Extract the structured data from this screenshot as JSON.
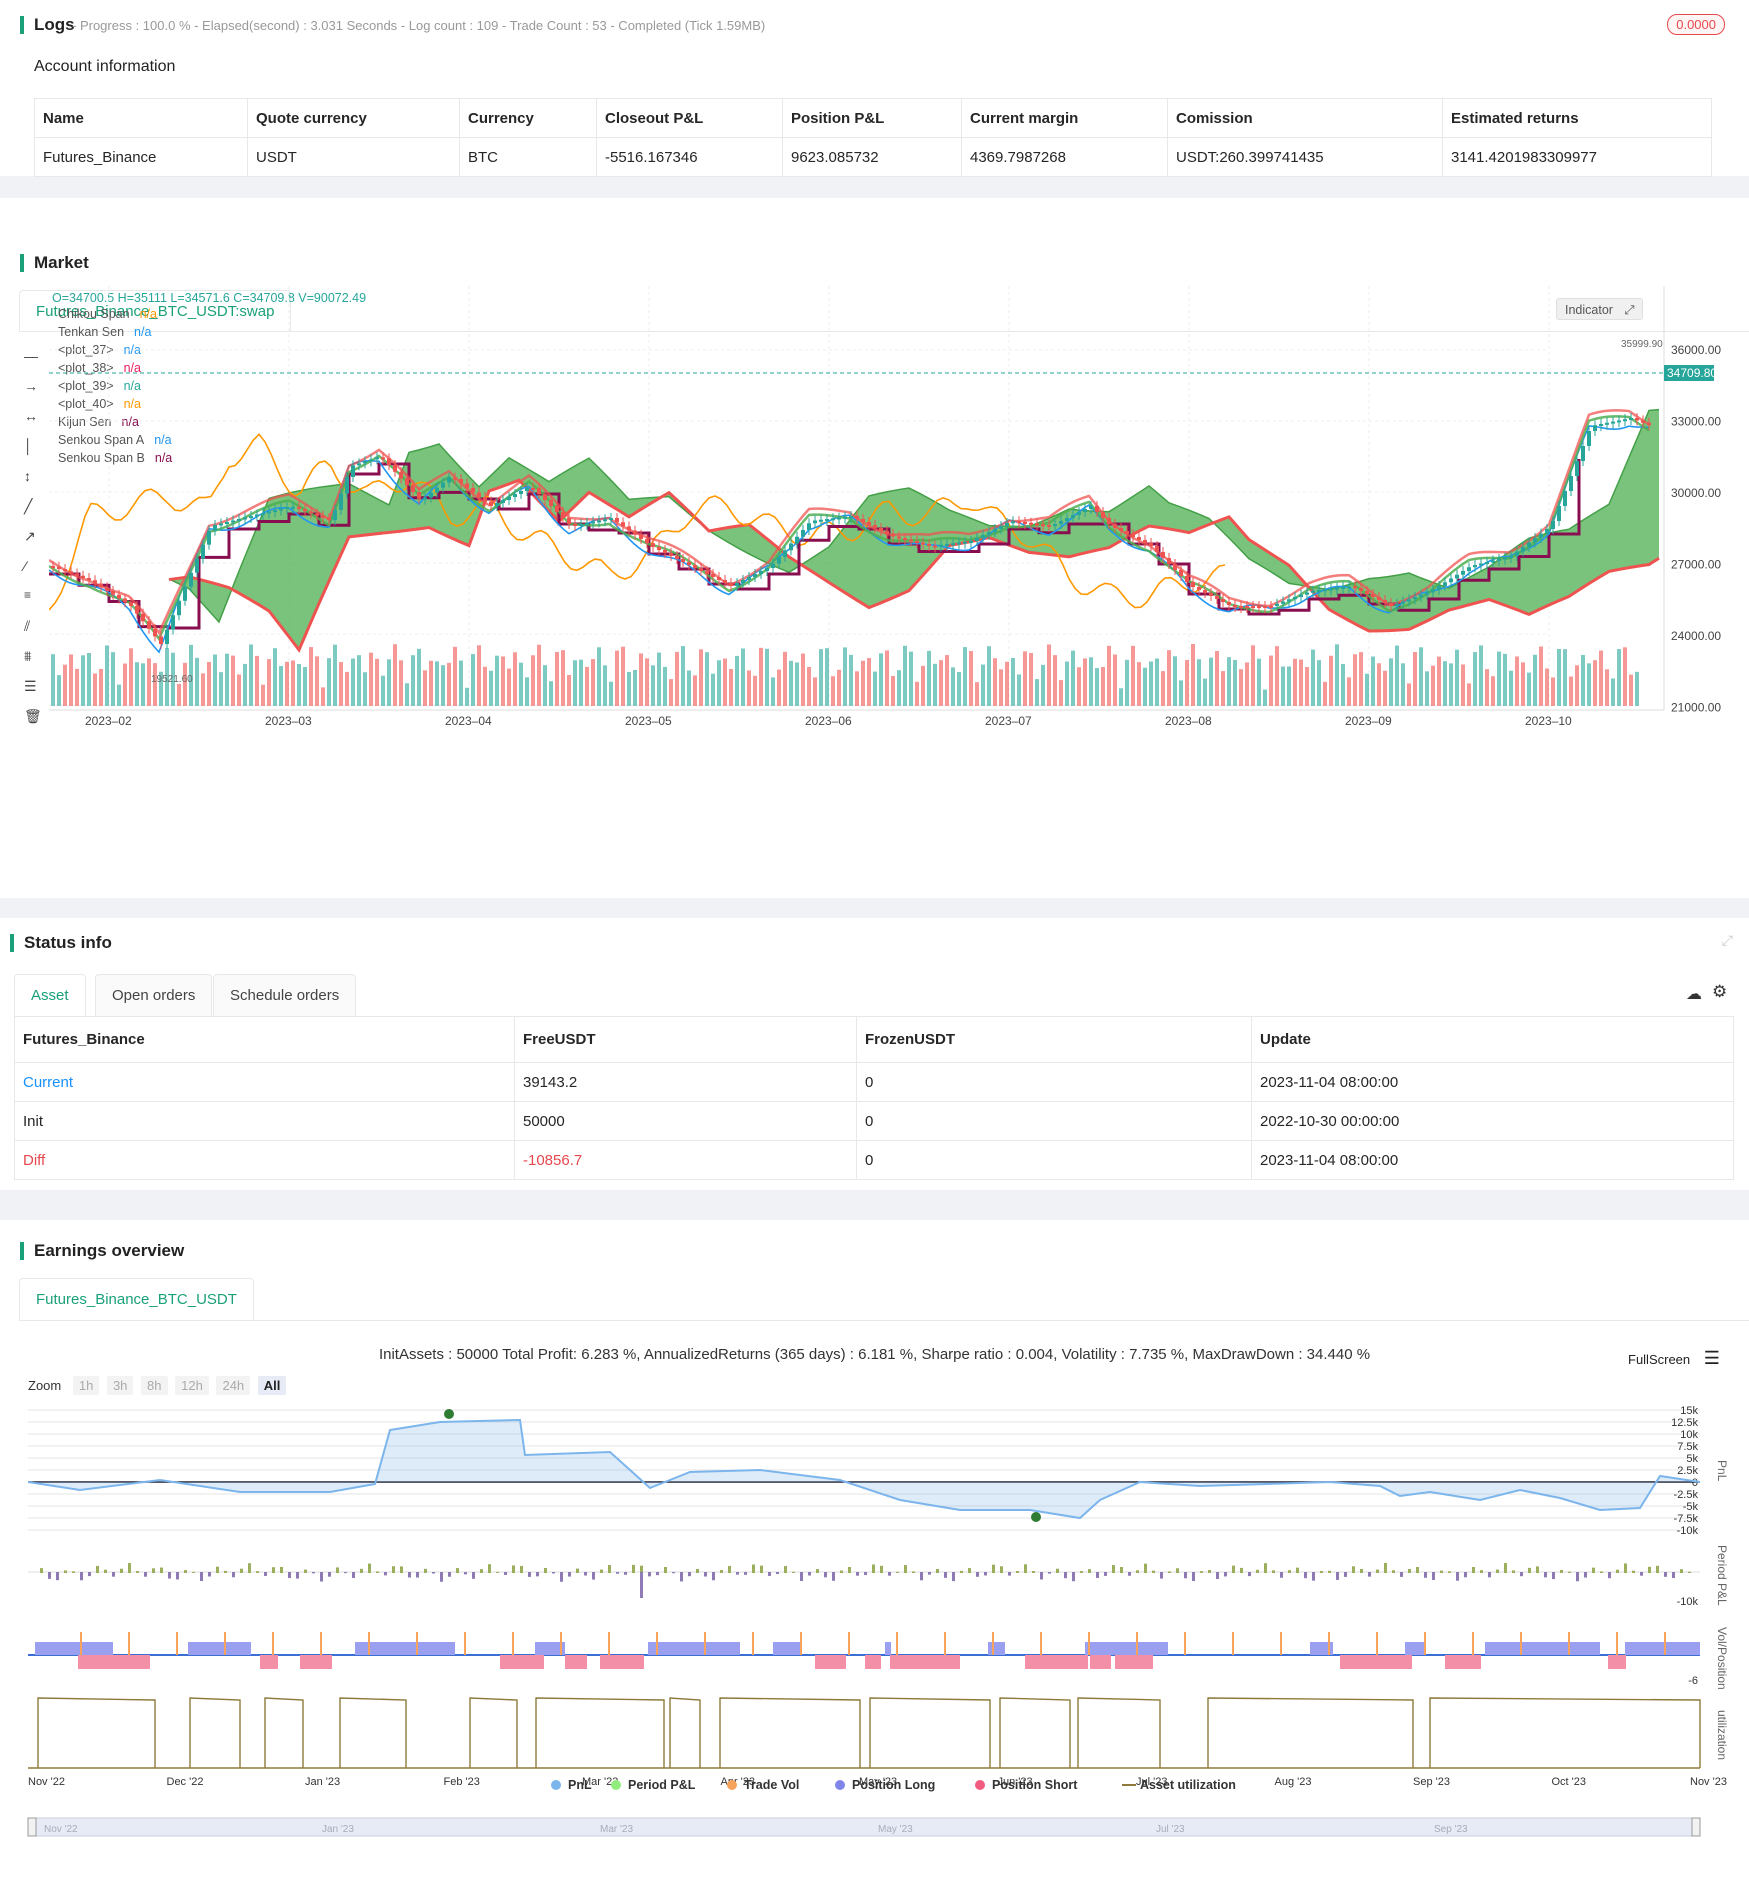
{
  "logs": {
    "title": "Logs",
    "status": "- Progress : 100.0 % - Elapsed(second) : 3.031 Seconds - Log count : 109 - Trade Count : 53 - Completed (Tick 1.59MB)",
    "badge": "0.0000"
  },
  "account": {
    "title": "Account information",
    "headers": [
      "Name",
      "Quote currency",
      "Currency",
      "Closeout P&L",
      "Position P&L",
      "Current margin",
      "Comission",
      "Estimated returns"
    ],
    "row": [
      "Futures_Binance",
      "USDT",
      "BTC",
      "-5516.167346",
      "9623.085732",
      "4369.7987268",
      "USDT:260.399741435",
      "3141.4201983309977"
    ]
  },
  "market": {
    "title": "Market",
    "tab": "Futures_Binance_BTC_USDT:swap",
    "ohlc": "O=34700.5 H=35111 L=34571.6 C=34709.8 V=90072.49",
    "indicator_btn": "Indicator",
    "legend": [
      {
        "name": "Chikou Span",
        "val": "n/a",
        "color": "#ff9800"
      },
      {
        "name": "Tenkan Sen",
        "val": "n/a",
        "color": "#2196f3"
      },
      {
        "name": "<plot_37>",
        "val": "n/a",
        "color": "#2196f3"
      },
      {
        "name": "<plot_38>",
        "val": "n/a",
        "color": "#e91e63"
      },
      {
        "name": "<plot_39>",
        "val": "n/a",
        "color": "#26a69a"
      },
      {
        "name": "<plot_40>",
        "val": "n/a",
        "color": "#ff9800"
      },
      {
        "name": "Kijun Sen",
        "val": "n/a",
        "color": "#880e4f"
      },
      {
        "name": "Senkou Span A",
        "val": "n/a",
        "color": "#2196f3"
      },
      {
        "name": "Senkou Span B",
        "val": "n/a",
        "color": "#880e4f"
      }
    ],
    "y_ticks": [
      "36000.00",
      "33000.00",
      "30000.00",
      "27000.00",
      "24000.00",
      "21000.00"
    ],
    "x_ticks": [
      "2023–02",
      "2023–03",
      "2023–04",
      "2023–05",
      "2023–06",
      "2023–07",
      "2023–08",
      "2023–09",
      "2023–10"
    ],
    "last_price": "34709.80",
    "high_label": "35999.90",
    "low_label": "19521.60"
  },
  "status": {
    "title": "Status info",
    "tabs": [
      "Asset",
      "Open orders",
      "Schedule orders"
    ],
    "headers": [
      "Futures_Binance",
      "FreeUSDT",
      "FrozenUSDT",
      "Update"
    ],
    "rows": [
      [
        "Current",
        "39143.2",
        "0",
        "2023-11-04 08:00:00"
      ],
      [
        "Init",
        "50000",
        "0",
        "2022-10-30 00:00:00"
      ],
      [
        "Diff",
        "-10856.7",
        "0",
        "2023-11-04 08:00:00"
      ]
    ]
  },
  "earnings": {
    "title": "Earnings overview",
    "tab": "Futures_Binance_BTC_USDT",
    "summary": "InitAssets : 50000 Total Profit: 6.283 %, AnnualizedReturns (365 days) : 6.181 %, Sharpe ratio : 0.004, Volatility : 7.735 %, MaxDrawDown : 34.440 %",
    "fullscreen": "FullScreen",
    "zoom_label": "Zoom",
    "zoom_opts": [
      "1h",
      "3h",
      "8h",
      "12h",
      "24h",
      "All"
    ],
    "pnl_ticks": [
      "15k",
      "12.5k",
      "10k",
      "7.5k",
      "5k",
      "2.5k",
      "0",
      "-2.5k",
      "-5k",
      "-7.5k",
      "-10k"
    ],
    "period_tick": "-10k",
    "pos_tick": "-6",
    "axis_titles": [
      "PnL",
      "Period P&L",
      "Vol/Position",
      "utilization"
    ],
    "x_ticks": [
      "Nov '22",
      "Dec '22",
      "Jan '23",
      "Feb '23",
      "Mar '23",
      "Apr '23",
      "May '23",
      "Jun '23",
      "Jul '23",
      "Aug '23",
      "Sep '23",
      "Oct '23",
      "Nov '23"
    ],
    "nav_ticks": [
      "Nov '22",
      "Jan '23",
      "Mar '23",
      "May '23",
      "Jul '23",
      "Sep '23"
    ],
    "legend": [
      {
        "name": "PnL",
        "color": "#7cb5ec"
      },
      {
        "name": "Period P&L",
        "color": "#90ed7d"
      },
      {
        "name": "Trade Vol",
        "color": "#f7a35c"
      },
      {
        "name": "Position Long",
        "color": "#8085e9"
      },
      {
        "name": "Position Short",
        "color": "#f15c80"
      },
      {
        "name": "Asset utilization",
        "color": "#8d7a3a"
      }
    ]
  }
}
